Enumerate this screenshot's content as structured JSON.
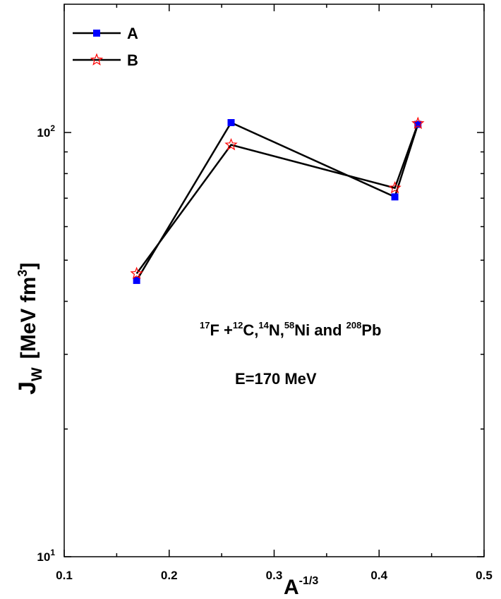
{
  "chart_data": {
    "type": "line",
    "xlabel": "A",
    "xlabel_sup": "-1/3",
    "ylabel": "J",
    "ylabel_sub": "W",
    "ylabel_unit": "[MeV fm",
    "ylabel_unit_sup": "3",
    "ylabel_unit_close": "]",
    "xlim": [
      0.1,
      0.5
    ],
    "ylim": [
      10,
      180
    ],
    "yscale": "log",
    "x_ticks": [
      {
        "value": 0.1,
        "label": "0.1"
      },
      {
        "value": 0.2,
        "label": "0.2"
      },
      {
        "value": 0.3,
        "label": "0.3"
      },
      {
        "value": 0.4,
        "label": "0.4"
      },
      {
        "value": 0.5,
        "label": "0.5"
      }
    ],
    "y_ticks": [
      {
        "value": 10,
        "base": "10",
        "exp": "1"
      },
      {
        "value": 100,
        "base": "10",
        "exp": "2"
      }
    ],
    "legend_position": "top-left",
    "series": [
      {
        "name": "A",
        "marker": "square",
        "color": "#0000ff",
        "x": [
          0.169,
          0.259,
          0.415,
          0.437
        ],
        "y": [
          44.8,
          105.5,
          70.5,
          104.5
        ]
      },
      {
        "name": "B",
        "marker": "star",
        "color": "#ff0000",
        "x": [
          0.169,
          0.259,
          0.415,
          0.437
        ],
        "y": [
          46.5,
          93.5,
          74.0,
          105.0
        ]
      }
    ],
    "annotations": {
      "reaction": [
        {
          "text": "17",
          "sup": true
        },
        {
          "text": "F +",
          "sup": false
        },
        {
          "text": "12",
          "sup": true
        },
        {
          "text": "C,",
          "sup": false
        },
        {
          "text": "14",
          "sup": true
        },
        {
          "text": "N,",
          "sup": false
        },
        {
          "text": "58",
          "sup": true
        },
        {
          "text": "Ni and ",
          "sup": false
        },
        {
          "text": "208",
          "sup": true
        },
        {
          "text": "Pb",
          "sup": false
        }
      ],
      "energy": "E=170 MeV"
    }
  }
}
